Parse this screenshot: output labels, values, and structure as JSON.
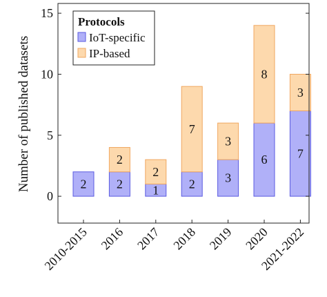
{
  "chart_data": {
    "type": "bar",
    "stacked": true,
    "categories": [
      "2010-2015",
      "2016",
      "2017",
      "2018",
      "2019",
      "2020",
      "2021-2022"
    ],
    "series": [
      {
        "name": "IoT-specific",
        "values": [
          2,
          2,
          1,
          2,
          3,
          6,
          7
        ],
        "color": "#b0b0f8",
        "edge_color": "#5a5ae0"
      },
      {
        "name": "IP-based",
        "values": [
          0,
          2,
          2,
          7,
          3,
          8,
          3
        ],
        "color": "#fdd9ad",
        "edge_color": "#f0a760"
      }
    ],
    "data_labels": {
      "IoT-specific": [
        "2",
        "2",
        "1",
        "2",
        "3",
        "6",
        "7"
      ],
      "IP-based": [
        "",
        "2",
        "2",
        "7",
        "3",
        "8",
        "3"
      ]
    },
    "ylabel": "Number of published datasets",
    "xlabel": "",
    "ylim": [
      -2.2,
      15.8
    ],
    "yticks": [
      0,
      5,
      10,
      15
    ],
    "legend": {
      "title": "Protocols",
      "position": "top-left"
    },
    "grid": false
  }
}
